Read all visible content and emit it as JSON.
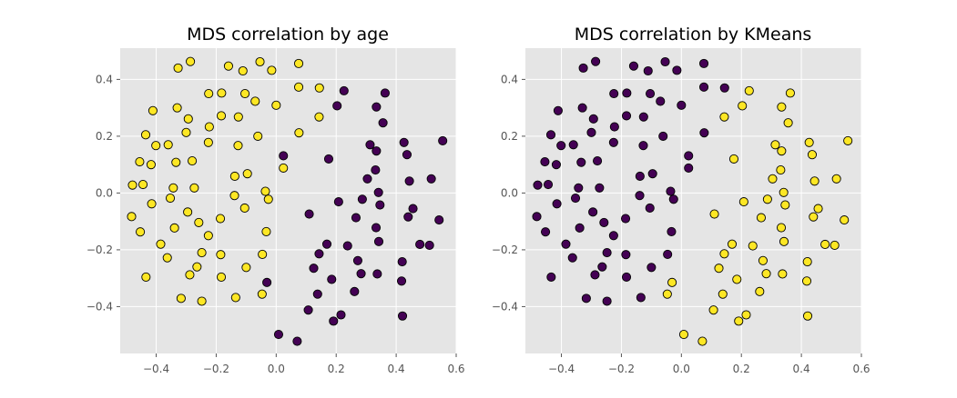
{
  "colors": {
    "axes_bg": "#e5e5e5",
    "grid": "#ffffff",
    "tick": "#555555",
    "point_edge": "#000000",
    "class_0": "#440154",
    "class_1": "#fde725"
  },
  "chart_data": [
    {
      "type": "scatter",
      "title": "MDS correlation by age",
      "xlabel": "",
      "ylabel": "",
      "xlim": [
        -0.52,
        0.6
      ],
      "ylim": [
        -0.565,
        0.51
      ],
      "xticks": [
        -0.4,
        -0.2,
        0.0,
        0.2,
        0.4,
        0.6
      ],
      "xtick_labels": [
        "−0.4",
        "−0.2",
        "0.0",
        "0.2",
        "0.4",
        "0.6"
      ],
      "yticks": [
        -0.4,
        -0.2,
        0.0,
        0.2,
        0.4
      ],
      "ytick_labels": [
        "−0.4",
        "−0.2",
        "0.0",
        "0.2",
        "0.4"
      ],
      "grid": true,
      "color_map": "viridis",
      "points": [
        [
          -0.286,
          0.463,
          1
        ],
        [
          -0.327,
          0.44,
          1
        ],
        [
          -0.054,
          0.462,
          1
        ],
        [
          -0.159,
          0.447,
          1
        ],
        [
          0.075,
          0.456,
          1
        ],
        [
          -0.111,
          0.43,
          1
        ],
        [
          -0.015,
          0.432,
          1
        ],
        [
          -0.225,
          0.35,
          1
        ],
        [
          -0.182,
          0.352,
          1
        ],
        [
          -0.104,
          0.35,
          1
        ],
        [
          -0.07,
          0.323,
          1
        ],
        [
          0.0,
          0.309,
          1
        ],
        [
          0.075,
          0.373,
          1
        ],
        [
          0.144,
          0.37,
          1
        ],
        [
          -0.33,
          0.3,
          1
        ],
        [
          -0.411,
          0.29,
          1
        ],
        [
          -0.293,
          0.261,
          1
        ],
        [
          -0.183,
          0.272,
          1
        ],
        [
          -0.126,
          0.268,
          1
        ],
        [
          0.143,
          0.268,
          1
        ],
        [
          -0.223,
          0.233,
          1
        ],
        [
          -0.3,
          0.213,
          1
        ],
        [
          -0.435,
          0.205,
          1
        ],
        [
          -0.061,
          0.2,
          1
        ],
        [
          0.076,
          0.212,
          1
        ],
        [
          -0.401,
          0.167,
          1
        ],
        [
          -0.36,
          0.17,
          1
        ],
        [
          -0.226,
          0.178,
          1
        ],
        [
          -0.127,
          0.167,
          1
        ],
        [
          -0.455,
          0.11,
          1
        ],
        [
          -0.417,
          0.1,
          1
        ],
        [
          -0.334,
          0.108,
          1
        ],
        [
          -0.28,
          0.113,
          1
        ],
        [
          0.024,
          0.088,
          1
        ],
        [
          -0.096,
          0.068,
          1
        ],
        [
          -0.138,
          0.059,
          1
        ],
        [
          -0.479,
          0.028,
          1
        ],
        [
          -0.444,
          0.03,
          1
        ],
        [
          -0.343,
          0.018,
          1
        ],
        [
          -0.273,
          0.018,
          1
        ],
        [
          -0.139,
          -0.009,
          1
        ],
        [
          -0.036,
          0.006,
          1
        ],
        [
          -0.026,
          -0.022,
          1
        ],
        [
          -0.353,
          -0.018,
          1
        ],
        [
          -0.415,
          -0.038,
          1
        ],
        [
          -0.105,
          -0.053,
          1
        ],
        [
          -0.295,
          -0.067,
          1
        ],
        [
          -0.482,
          -0.083,
          1
        ],
        [
          -0.258,
          -0.104,
          1
        ],
        [
          -0.186,
          -0.09,
          1
        ],
        [
          -0.339,
          -0.123,
          1
        ],
        [
          -0.453,
          -0.137,
          1
        ],
        [
          -0.226,
          -0.15,
          1
        ],
        [
          -0.033,
          -0.136,
          1
        ],
        [
          -0.385,
          -0.18,
          1
        ],
        [
          -0.248,
          -0.21,
          1
        ],
        [
          -0.185,
          -0.217,
          1
        ],
        [
          -0.046,
          -0.216,
          1
        ],
        [
          -0.363,
          -0.228,
          1
        ],
        [
          -0.264,
          -0.26,
          1
        ],
        [
          -0.1,
          -0.262,
          1
        ],
        [
          -0.288,
          -0.288,
          1
        ],
        [
          -0.434,
          -0.296,
          1
        ],
        [
          -0.183,
          -0.296,
          1
        ],
        [
          -0.317,
          -0.371,
          1
        ],
        [
          -0.248,
          -0.381,
          1
        ],
        [
          -0.135,
          -0.368,
          1
        ],
        [
          -0.047,
          -0.356,
          1
        ],
        [
          0.226,
          0.36,
          0
        ],
        [
          0.363,
          0.352,
          0
        ],
        [
          0.203,
          0.307,
          0
        ],
        [
          0.334,
          0.303,
          0
        ],
        [
          0.356,
          0.247,
          0
        ],
        [
          0.313,
          0.17,
          0
        ],
        [
          0.426,
          0.178,
          0
        ],
        [
          0.436,
          0.135,
          0
        ],
        [
          0.555,
          0.184,
          0
        ],
        [
          0.024,
          0.131,
          0
        ],
        [
          0.175,
          0.12,
          0
        ],
        [
          0.334,
          0.148,
          0
        ],
        [
          0.331,
          0.081,
          0
        ],
        [
          0.304,
          0.05,
          0
        ],
        [
          0.444,
          0.042,
          0
        ],
        [
          0.517,
          0.05,
          0
        ],
        [
          0.208,
          -0.031,
          0
        ],
        [
          0.287,
          -0.022,
          0
        ],
        [
          0.341,
          0.002,
          0
        ],
        [
          0.456,
          -0.055,
          0
        ],
        [
          0.44,
          -0.084,
          0
        ],
        [
          0.346,
          -0.042,
          0
        ],
        [
          0.543,
          -0.095,
          0
        ],
        [
          0.11,
          -0.074,
          0
        ],
        [
          0.266,
          -0.087,
          0
        ],
        [
          0.333,
          -0.122,
          0
        ],
        [
          0.342,
          -0.171,
          0
        ],
        [
          0.169,
          -0.18,
          0
        ],
        [
          0.238,
          -0.186,
          0
        ],
        [
          0.143,
          -0.214,
          0
        ],
        [
          0.479,
          -0.181,
          0
        ],
        [
          0.511,
          -0.184,
          0
        ],
        [
          0.272,
          -0.238,
          0
        ],
        [
          0.42,
          -0.242,
          0
        ],
        [
          0.125,
          -0.265,
          0
        ],
        [
          0.283,
          -0.284,
          0
        ],
        [
          0.337,
          -0.285,
          0
        ],
        [
          0.185,
          -0.304,
          0
        ],
        [
          0.418,
          -0.31,
          0
        ],
        [
          -0.031,
          -0.315,
          0
        ],
        [
          0.261,
          -0.347,
          0
        ],
        [
          0.138,
          -0.356,
          0
        ],
        [
          0.107,
          -0.412,
          0
        ],
        [
          0.216,
          -0.429,
          0
        ],
        [
          0.421,
          -0.433,
          0
        ],
        [
          0.191,
          -0.451,
          0
        ],
        [
          0.008,
          -0.498,
          0
        ],
        [
          0.07,
          -0.522,
          0
        ]
      ]
    },
    {
      "type": "scatter",
      "title": "MDS correlation by KMeans",
      "xlabel": "",
      "ylabel": "",
      "xlim": [
        -0.52,
        0.6
      ],
      "ylim": [
        -0.565,
        0.51
      ],
      "xticks": [
        -0.4,
        -0.2,
        0.0,
        0.2,
        0.4,
        0.6
      ],
      "xtick_labels": [
        "−0.4",
        "−0.2",
        "0.0",
        "0.2",
        "0.4",
        "0.6"
      ],
      "yticks": [
        -0.4,
        -0.2,
        0.0,
        0.2,
        0.4
      ],
      "ytick_labels": [
        "−0.4",
        "−0.2",
        "0.0",
        "0.2",
        "0.4"
      ],
      "grid": true,
      "color_map": "viridis",
      "points": [
        [
          -0.286,
          0.463,
          0
        ],
        [
          -0.327,
          0.44,
          0
        ],
        [
          -0.054,
          0.462,
          0
        ],
        [
          -0.159,
          0.447,
          0
        ],
        [
          0.075,
          0.456,
          0
        ],
        [
          -0.111,
          0.43,
          0
        ],
        [
          -0.015,
          0.432,
          0
        ],
        [
          -0.225,
          0.35,
          0
        ],
        [
          -0.182,
          0.352,
          0
        ],
        [
          -0.104,
          0.35,
          0
        ],
        [
          -0.07,
          0.323,
          0
        ],
        [
          0.0,
          0.309,
          0
        ],
        [
          0.075,
          0.373,
          0
        ],
        [
          0.144,
          0.37,
          0
        ],
        [
          -0.33,
          0.3,
          0
        ],
        [
          -0.411,
          0.29,
          0
        ],
        [
          -0.293,
          0.261,
          0
        ],
        [
          -0.183,
          0.272,
          0
        ],
        [
          -0.126,
          0.268,
          0
        ],
        [
          0.143,
          0.268,
          1
        ],
        [
          -0.223,
          0.233,
          0
        ],
        [
          -0.3,
          0.213,
          0
        ],
        [
          -0.435,
          0.205,
          0
        ],
        [
          -0.061,
          0.2,
          0
        ],
        [
          0.076,
          0.212,
          0
        ],
        [
          -0.401,
          0.167,
          0
        ],
        [
          -0.36,
          0.17,
          0
        ],
        [
          -0.226,
          0.178,
          0
        ],
        [
          -0.127,
          0.167,
          0
        ],
        [
          -0.455,
          0.11,
          0
        ],
        [
          -0.417,
          0.1,
          0
        ],
        [
          -0.334,
          0.108,
          0
        ],
        [
          -0.28,
          0.113,
          0
        ],
        [
          0.024,
          0.088,
          0
        ],
        [
          -0.096,
          0.068,
          0
        ],
        [
          -0.138,
          0.059,
          0
        ],
        [
          -0.479,
          0.028,
          0
        ],
        [
          -0.444,
          0.03,
          0
        ],
        [
          -0.343,
          0.018,
          0
        ],
        [
          -0.273,
          0.018,
          0
        ],
        [
          -0.139,
          -0.009,
          0
        ],
        [
          -0.036,
          0.006,
          0
        ],
        [
          -0.026,
          -0.022,
          0
        ],
        [
          -0.353,
          -0.018,
          0
        ],
        [
          -0.415,
          -0.038,
          0
        ],
        [
          -0.105,
          -0.053,
          0
        ],
        [
          -0.295,
          -0.067,
          0
        ],
        [
          -0.482,
          -0.083,
          0
        ],
        [
          -0.258,
          -0.104,
          0
        ],
        [
          -0.186,
          -0.09,
          0
        ],
        [
          -0.339,
          -0.123,
          0
        ],
        [
          -0.453,
          -0.137,
          0
        ],
        [
          -0.226,
          -0.15,
          0
        ],
        [
          -0.033,
          -0.136,
          0
        ],
        [
          -0.385,
          -0.18,
          0
        ],
        [
          -0.248,
          -0.21,
          0
        ],
        [
          -0.185,
          -0.217,
          0
        ],
        [
          -0.046,
          -0.216,
          0
        ],
        [
          -0.363,
          -0.228,
          0
        ],
        [
          -0.264,
          -0.26,
          0
        ],
        [
          -0.1,
          -0.262,
          0
        ],
        [
          -0.288,
          -0.288,
          0
        ],
        [
          -0.434,
          -0.296,
          0
        ],
        [
          -0.183,
          -0.296,
          0
        ],
        [
          -0.317,
          -0.371,
          0
        ],
        [
          -0.248,
          -0.381,
          0
        ],
        [
          -0.135,
          -0.368,
          0
        ],
        [
          -0.047,
          -0.356,
          1
        ],
        [
          0.226,
          0.36,
          1
        ],
        [
          0.363,
          0.352,
          1
        ],
        [
          0.203,
          0.307,
          1
        ],
        [
          0.334,
          0.303,
          1
        ],
        [
          0.356,
          0.247,
          1
        ],
        [
          0.313,
          0.17,
          1
        ],
        [
          0.426,
          0.178,
          1
        ],
        [
          0.436,
          0.135,
          1
        ],
        [
          0.555,
          0.184,
          1
        ],
        [
          0.024,
          0.131,
          0
        ],
        [
          0.175,
          0.12,
          1
        ],
        [
          0.334,
          0.148,
          1
        ],
        [
          0.331,
          0.081,
          1
        ],
        [
          0.304,
          0.05,
          1
        ],
        [
          0.444,
          0.042,
          1
        ],
        [
          0.517,
          0.05,
          1
        ],
        [
          0.208,
          -0.031,
          1
        ],
        [
          0.287,
          -0.022,
          1
        ],
        [
          0.341,
          0.002,
          1
        ],
        [
          0.456,
          -0.055,
          1
        ],
        [
          0.44,
          -0.084,
          1
        ],
        [
          0.346,
          -0.042,
          1
        ],
        [
          0.543,
          -0.095,
          1
        ],
        [
          0.11,
          -0.074,
          1
        ],
        [
          0.266,
          -0.087,
          1
        ],
        [
          0.333,
          -0.122,
          1
        ],
        [
          0.342,
          -0.171,
          1
        ],
        [
          0.169,
          -0.18,
          1
        ],
        [
          0.238,
          -0.186,
          1
        ],
        [
          0.143,
          -0.214,
          1
        ],
        [
          0.479,
          -0.181,
          1
        ],
        [
          0.511,
          -0.184,
          1
        ],
        [
          0.272,
          -0.238,
          1
        ],
        [
          0.42,
          -0.242,
          1
        ],
        [
          0.125,
          -0.265,
          1
        ],
        [
          0.283,
          -0.284,
          1
        ],
        [
          0.337,
          -0.285,
          1
        ],
        [
          0.185,
          -0.304,
          1
        ],
        [
          0.418,
          -0.31,
          1
        ],
        [
          -0.031,
          -0.315,
          1
        ],
        [
          0.261,
          -0.347,
          1
        ],
        [
          0.138,
          -0.356,
          1
        ],
        [
          0.107,
          -0.412,
          1
        ],
        [
          0.216,
          -0.429,
          1
        ],
        [
          0.421,
          -0.433,
          1
        ],
        [
          0.191,
          -0.451,
          1
        ],
        [
          0.008,
          -0.498,
          1
        ],
        [
          0.07,
          -0.522,
          1
        ]
      ]
    }
  ]
}
